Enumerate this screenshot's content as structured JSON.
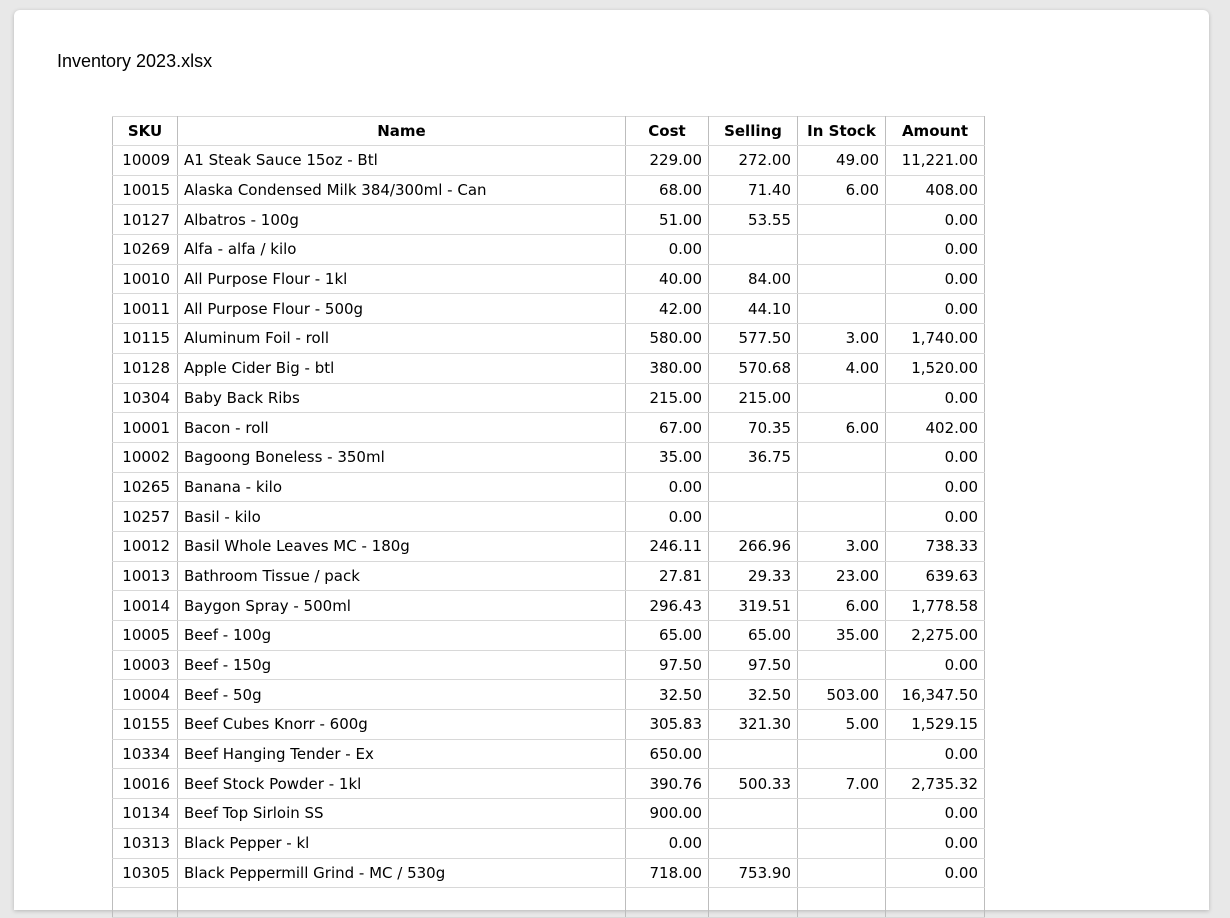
{
  "title": "Inventory 2023.xlsx",
  "colors": {
    "page_background": "#e8e8e8",
    "card_background": "#ffffff",
    "grid_border_vertical": "#bdbdbd",
    "grid_border_horizontal": "#d8d8d8",
    "text": "#000000"
  },
  "table": {
    "columns": [
      "SKU",
      "Name",
      "Cost",
      "Selling",
      "In Stock",
      "Amount"
    ],
    "rows": [
      [
        "10009",
        "A1 Steak Sauce 15oz - Btl",
        "229.00",
        "272.00",
        "49.00",
        "11,221.00"
      ],
      [
        "10015",
        "Alaska Condensed Milk 384/300ml - Can",
        "68.00",
        "71.40",
        "6.00",
        "408.00"
      ],
      [
        "10127",
        "Albatros - 100g",
        "51.00",
        "53.55",
        "",
        "0.00"
      ],
      [
        "10269",
        "Alfa - alfa / kilo",
        "0.00",
        "",
        "",
        "0.00"
      ],
      [
        "10010",
        "All Purpose Flour - 1kl",
        "40.00",
        "84.00",
        "",
        "0.00"
      ],
      [
        "10011",
        "All Purpose Flour - 500g",
        "42.00",
        "44.10",
        "",
        "0.00"
      ],
      [
        "10115",
        "Aluminum Foil - roll",
        "580.00",
        "577.50",
        "3.00",
        "1,740.00"
      ],
      [
        "10128",
        "Apple Cider Big - btl",
        "380.00",
        "570.68",
        "4.00",
        "1,520.00"
      ],
      [
        "10304",
        "Baby Back Ribs",
        "215.00",
        "215.00",
        "",
        "0.00"
      ],
      [
        "10001",
        "Bacon - roll",
        "67.00",
        "70.35",
        "6.00",
        "402.00"
      ],
      [
        "10002",
        "Bagoong Boneless - 350ml",
        "35.00",
        "36.75",
        "",
        "0.00"
      ],
      [
        "10265",
        "Banana - kilo",
        "0.00",
        "",
        "",
        "0.00"
      ],
      [
        "10257",
        "Basil - kilo",
        "0.00",
        "",
        "",
        "0.00"
      ],
      [
        "10012",
        "Basil Whole Leaves MC - 180g",
        "246.11",
        "266.96",
        "3.00",
        "738.33"
      ],
      [
        "10013",
        "Bathroom Tissue / pack",
        "27.81",
        "29.33",
        "23.00",
        "639.63"
      ],
      [
        "10014",
        "Baygon Spray - 500ml",
        "296.43",
        "319.51",
        "6.00",
        "1,778.58"
      ],
      [
        "10005",
        "Beef - 100g",
        "65.00",
        "65.00",
        "35.00",
        "2,275.00"
      ],
      [
        "10003",
        "Beef - 150g",
        "97.50",
        "97.50",
        "",
        "0.00"
      ],
      [
        "10004",
        "Beef - 50g",
        "32.50",
        "32.50",
        "503.00",
        "16,347.50"
      ],
      [
        "10155",
        "Beef Cubes Knorr - 600g",
        "305.83",
        "321.30",
        "5.00",
        "1,529.15"
      ],
      [
        "10334",
        "Beef Hanging Tender - Ex",
        "650.00",
        "",
        "",
        "0.00"
      ],
      [
        "10016",
        "Beef Stock Powder - 1kl",
        "390.76",
        "500.33",
        "7.00",
        "2,735.32"
      ],
      [
        "10134",
        "Beef Top Sirloin SS",
        "900.00",
        "",
        "",
        "0.00"
      ],
      [
        "10313",
        "Black Pepper - kl",
        "0.00",
        "",
        "",
        "0.00"
      ],
      [
        "10305",
        "Black Peppermill Grind - MC / 530g",
        "718.00",
        "753.90",
        "",
        "0.00"
      ]
    ],
    "partial_empty_row_visible": true
  }
}
